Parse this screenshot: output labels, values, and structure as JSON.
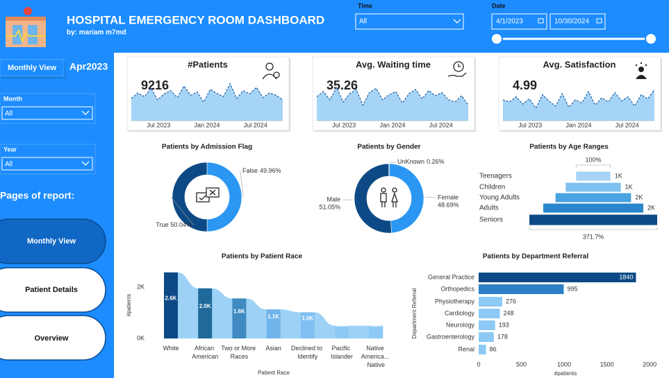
{
  "header": {
    "title": "HOSPITAL EMERGENCY ROOM DASHBOARD",
    "subtitle": "by: mariam m7md"
  },
  "filters": {
    "time": {
      "label": "Time",
      "value": "All"
    },
    "date": {
      "label": "Date",
      "start": "4/1/2023",
      "end": "10/30/2024"
    },
    "month": {
      "label": "Month",
      "value": "All"
    },
    "year": {
      "label": "Year",
      "value": "All"
    }
  },
  "sidebar": {
    "view_button": "Monthly View",
    "period": "Apr2023",
    "pages_title": "Pages of report:",
    "pages": [
      "Monthly View",
      "Patient Details",
      "Overview"
    ]
  },
  "chart_data": [
    {
      "type": "area",
      "title": "#Patients",
      "kpi_value": 9216,
      "xtick_labels": [
        "Jul 2023",
        "Jan 2024",
        "Jul 2024"
      ],
      "values": [
        108,
        120,
        112,
        130,
        105,
        118,
        125,
        110,
        135,
        115,
        122,
        100,
        128,
        119,
        112,
        140,
        108,
        125,
        118,
        132,
        110,
        120,
        115,
        105
      ],
      "ylim": [
        60,
        150
      ],
      "color": "#a6d4f7",
      "line_color": "#1f5fa0"
    },
    {
      "type": "area",
      "title": "Avg. Waiting time",
      "kpi_value": 35.26,
      "xtick_labels": [
        "Jul 2023",
        "Jan 2024",
        "Jul 2024"
      ],
      "values": [
        33,
        38,
        30,
        42,
        28,
        36,
        40,
        25,
        37,
        41,
        30,
        35,
        38,
        27,
        36,
        40,
        31,
        39,
        34,
        37,
        30,
        28,
        34,
        25
      ],
      "ylim": [
        10,
        50
      ],
      "color": "#a6d4f7",
      "line_color": "#1f5fa0"
    },
    {
      "type": "area",
      "title": "Avg. Satisfaction",
      "kpi_value": 4.99,
      "xtick_labels": [
        "Jul 2023",
        "Jan 2024",
        "Jul 2024"
      ],
      "values": [
        5.0,
        4.8,
        5.3,
        4.6,
        5.1,
        4.2,
        5.5,
        4.9,
        4.4,
        5.6,
        4.3,
        5.0,
        4.7,
        5.8,
        4.5,
        5.2,
        4.8,
        5.7,
        4.9,
        5.3,
        4.4,
        5.5,
        5.1,
        6.0
      ],
      "ylim": [
        3,
        7
      ],
      "color": "#a6d4f7",
      "line_color": "#1f5fa0"
    },
    {
      "type": "donut",
      "title": "Patients by Admission Flag",
      "categories": [
        "False",
        "True"
      ],
      "values": [
        49.96,
        50.04
      ],
      "value_labels": [
        "49.96%",
        "50.04%"
      ],
      "colors": [
        "#2b97f2",
        "#0d4a85"
      ]
    },
    {
      "type": "donut",
      "title": "Patients by Gender",
      "categories": [
        "UnKnown",
        "Female",
        "Male"
      ],
      "values": [
        0.26,
        48.69,
        51.05
      ],
      "value_labels": [
        "0.26%",
        "48.69%",
        "51.05%"
      ],
      "colors": [
        "#dbeefc",
        "#2b97f2",
        "#0d4a85"
      ]
    },
    {
      "type": "funnel",
      "title": "Patients by Age Ranges",
      "categories": [
        "Teenagers",
        "Children",
        "Young Adults",
        "Adults",
        "Seniors"
      ],
      "values": [
        806,
        1290,
        1770,
        2344,
        2996
      ],
      "value_labels": [
        "1K",
        "1K",
        "2K",
        "2K",
        null
      ],
      "top_label": "100%",
      "bottom_label": "371.7%",
      "colors": [
        "#a6d4f7",
        "#7fc0f2",
        "#4aa3e0",
        "#2a86cc",
        "#0d4a85"
      ]
    },
    {
      "type": "ribbon",
      "title": "Patients by Patient Race",
      "categories": [
        "White",
        "African American",
        "Two or More Races",
        "Asian",
        "Declined to Identify",
        "Pacific Islander",
        "Native America... Native"
      ],
      "values": [
        2571,
        1951,
        1557,
        1129,
        1016,
        496,
        496
      ],
      "value_labels": [
        "2.6K",
        "2.0K",
        "1.6K",
        "1.1K",
        "1.0K",
        "0.5K",
        "0.5K"
      ],
      "ylim": [
        0,
        2700
      ],
      "yticks": [
        {
          "value": 0,
          "label": "0K"
        },
        {
          "value": 2000,
          "label": "2K"
        }
      ],
      "xlabel": "Patient Race",
      "ylabel": "#patients",
      "colors": [
        "#0d4a85",
        "#1f6a9a",
        "#3f8ac0",
        "#6fb4ea",
        "#7fc0f2",
        "#8ccaf5",
        "#8ccaf5"
      ],
      "ribbon_color": "#8ccaf5"
    },
    {
      "type": "hbar",
      "title": "Patients by Department Referral",
      "categories": [
        "General Practice",
        "Orthopedics",
        "Physiotherapy",
        "Cardiology",
        "Neurology",
        "Gastroenterology",
        "Renal"
      ],
      "values": [
        1840,
        995,
        276,
        248,
        193,
        178,
        86
      ],
      "xlim": [
        0,
        2080
      ],
      "xticks": [
        0,
        500,
        1000,
        1500,
        2000
      ],
      "xlabel": "#patients",
      "ylabel": "Department Referral",
      "colors": [
        "#0d4a85",
        "#2a7fc5",
        "#8ccaf5",
        "#8ccaf5",
        "#8ccaf5",
        "#8ccaf5",
        "#8ccaf5"
      ]
    }
  ]
}
